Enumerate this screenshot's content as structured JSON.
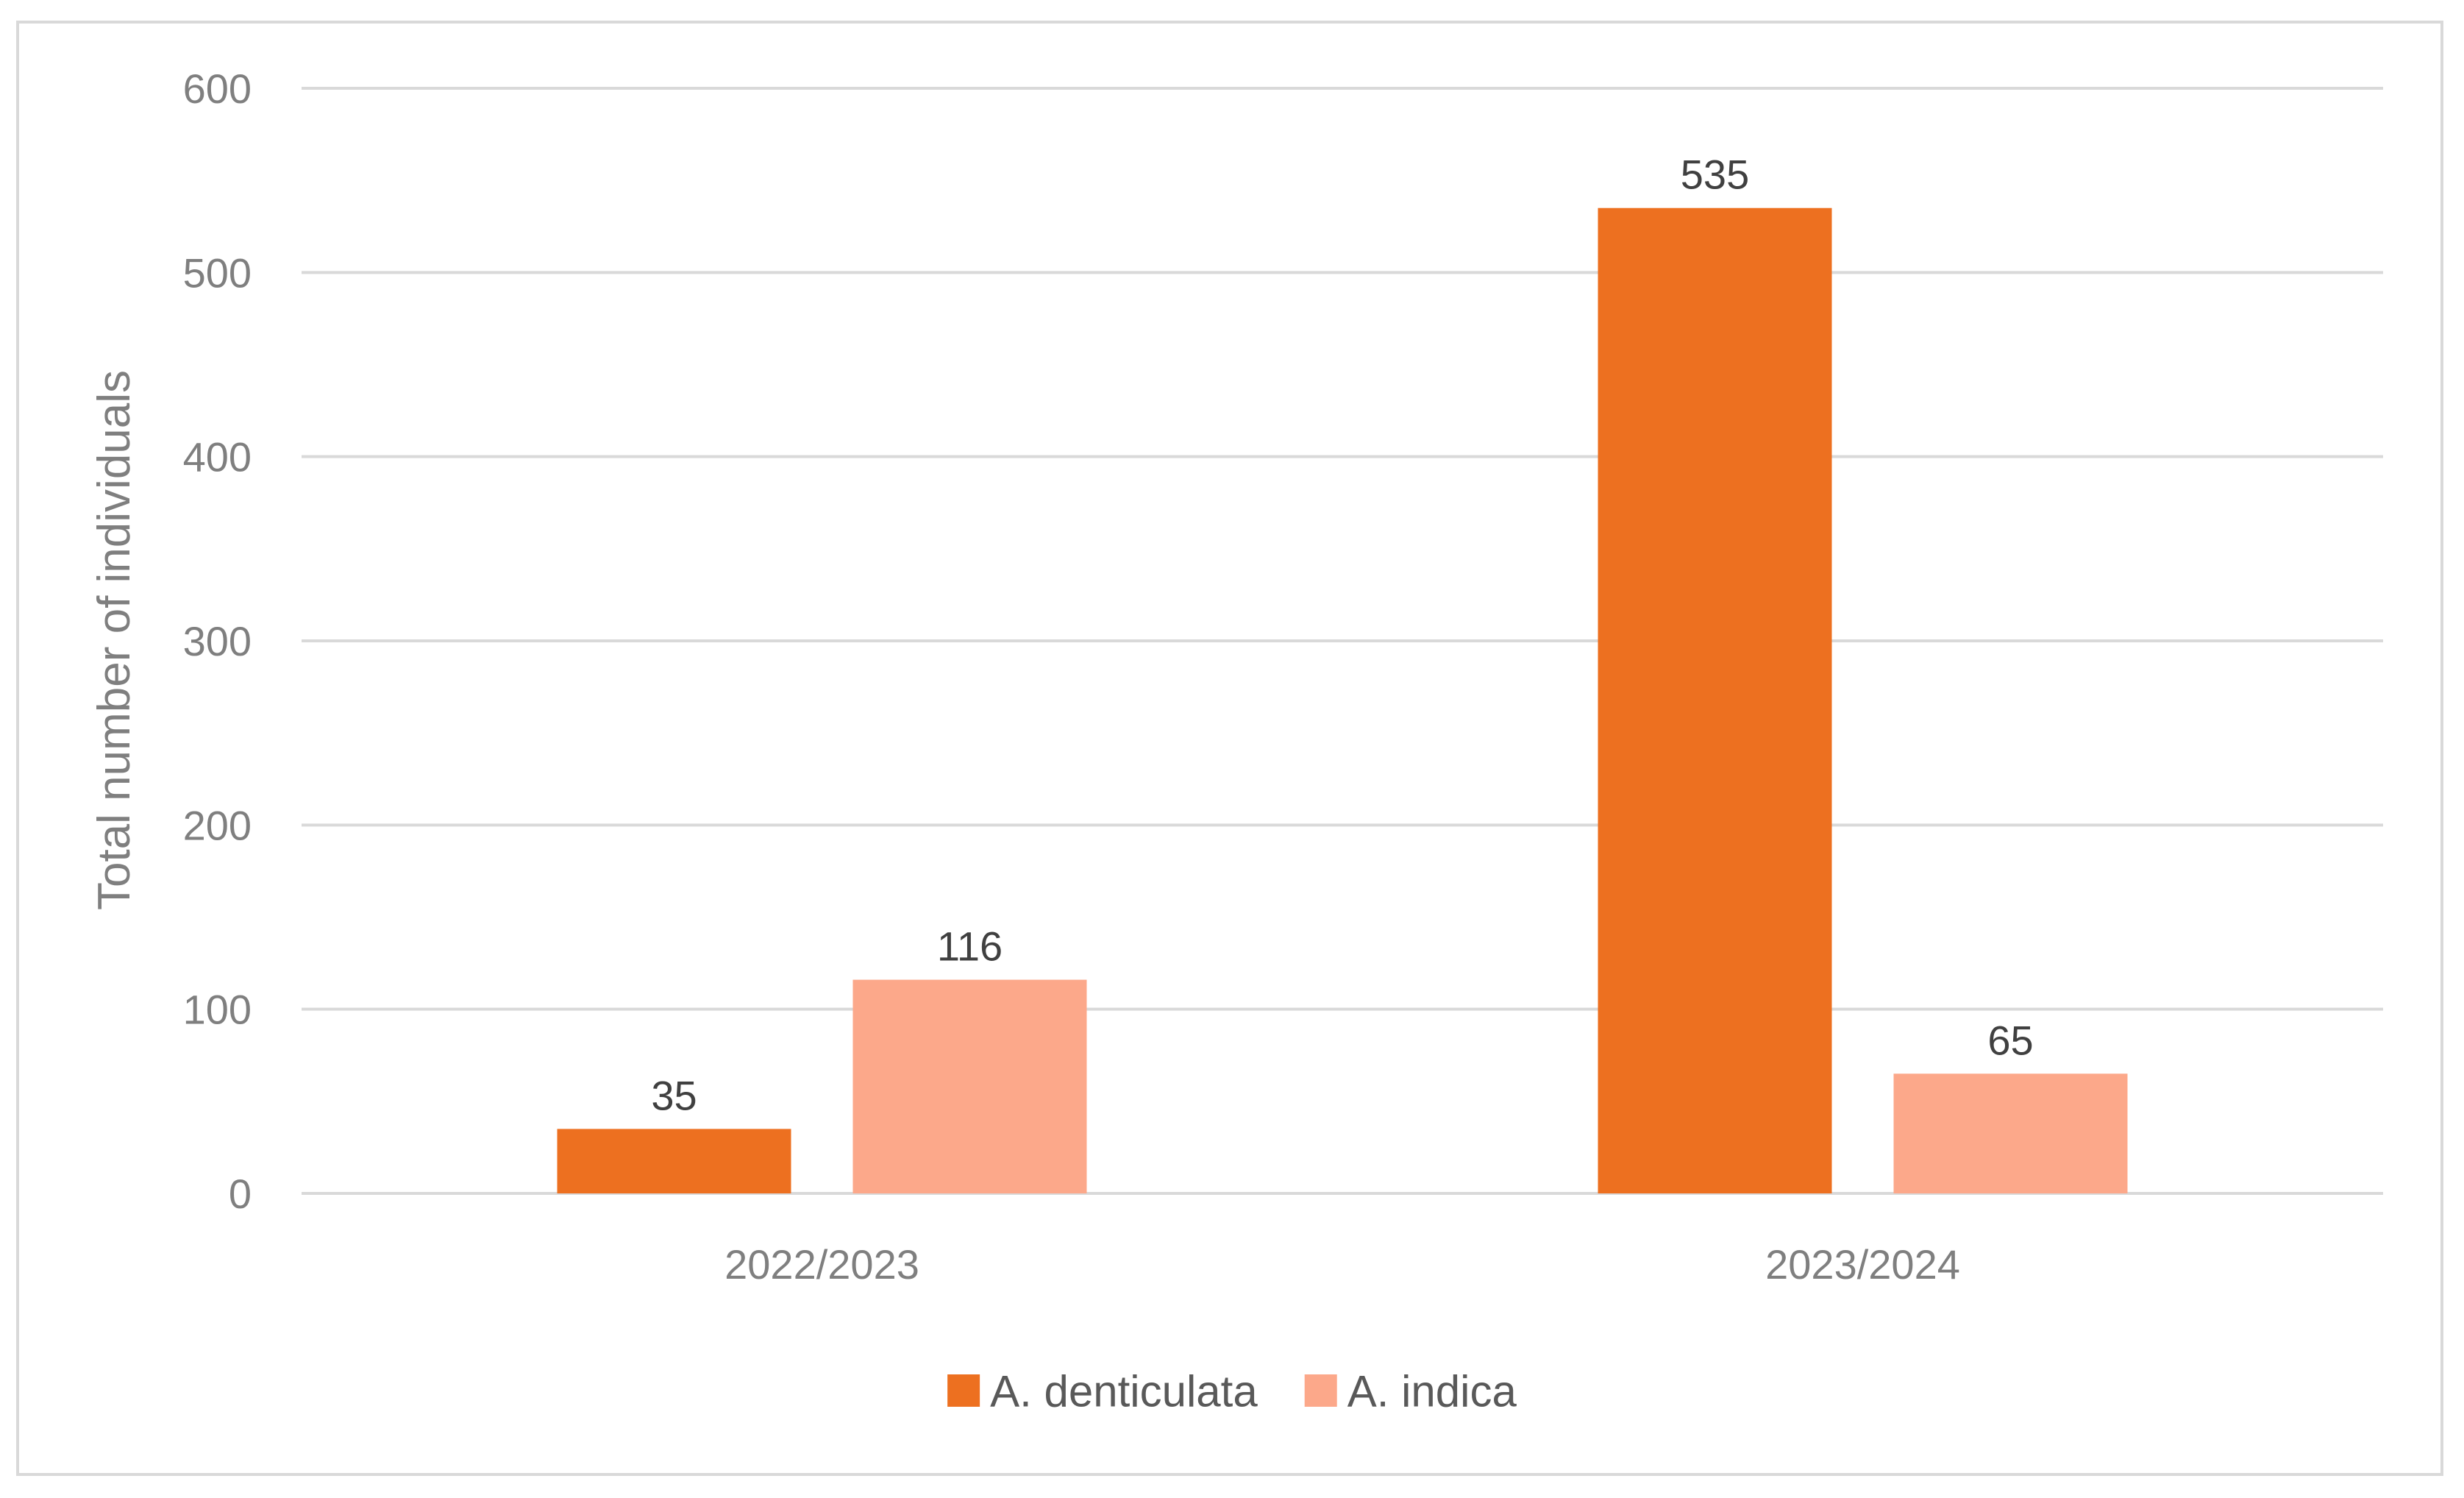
{
  "chart_data": {
    "type": "bar",
    "title": "",
    "xlabel": "",
    "ylabel": "Total number of individuals",
    "categories": [
      "2022/2023",
      "2023/2024"
    ],
    "series": [
      {
        "name": "A. denticulata",
        "color": "#ED7020",
        "values": [
          35,
          535
        ]
      },
      {
        "name": "A. indica",
        "color": "#FCA88A",
        "values": [
          116,
          65
        ]
      }
    ],
    "ylim": [
      0,
      600
    ],
    "yticks": [
      0,
      100,
      200,
      300,
      400,
      500,
      600
    ],
    "grid": true,
    "legend_position": "bottom",
    "data_labels": true
  }
}
